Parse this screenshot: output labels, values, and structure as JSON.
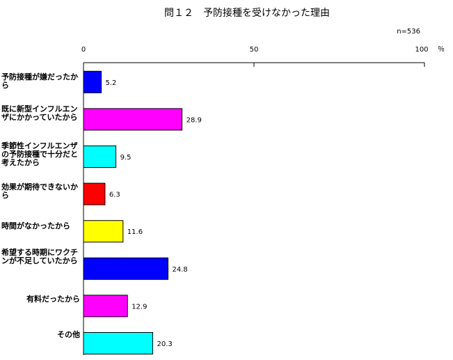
{
  "chart_data": {
    "type": "bar",
    "orientation": "horizontal",
    "title": "問１２　予防接種を受けなかった理由",
    "note": "n=536",
    "unit": "％",
    "xlim": [
      0,
      100
    ],
    "ticks": [
      "0",
      "50",
      "100"
    ],
    "categories": [
      "予防接種が嫌だったから",
      "既に新型インフルエンザにかかっていたから",
      "季節性インフルエンザの予防接種で十分だと考えたから",
      "効果が期待できないから",
      "時間がなかったから",
      "希望する時期にワクチンが不足していたから",
      "有料だったから",
      "その他"
    ],
    "values": [
      5.2,
      28.9,
      9.5,
      6.3,
      11.6,
      24.8,
      12.9,
      20.3
    ],
    "value_labels": [
      "5.2",
      "28.9",
      "9.5",
      "6.3",
      "11.6",
      "24.8",
      "12.9",
      "20.3"
    ],
    "colors": [
      "#0000ff",
      "#ff00ff",
      "#00ffff",
      "#ff0000",
      "#ffff00",
      "#0000ff",
      "#ff00ff",
      "#00ffff"
    ],
    "grid": false,
    "legend": "none"
  }
}
